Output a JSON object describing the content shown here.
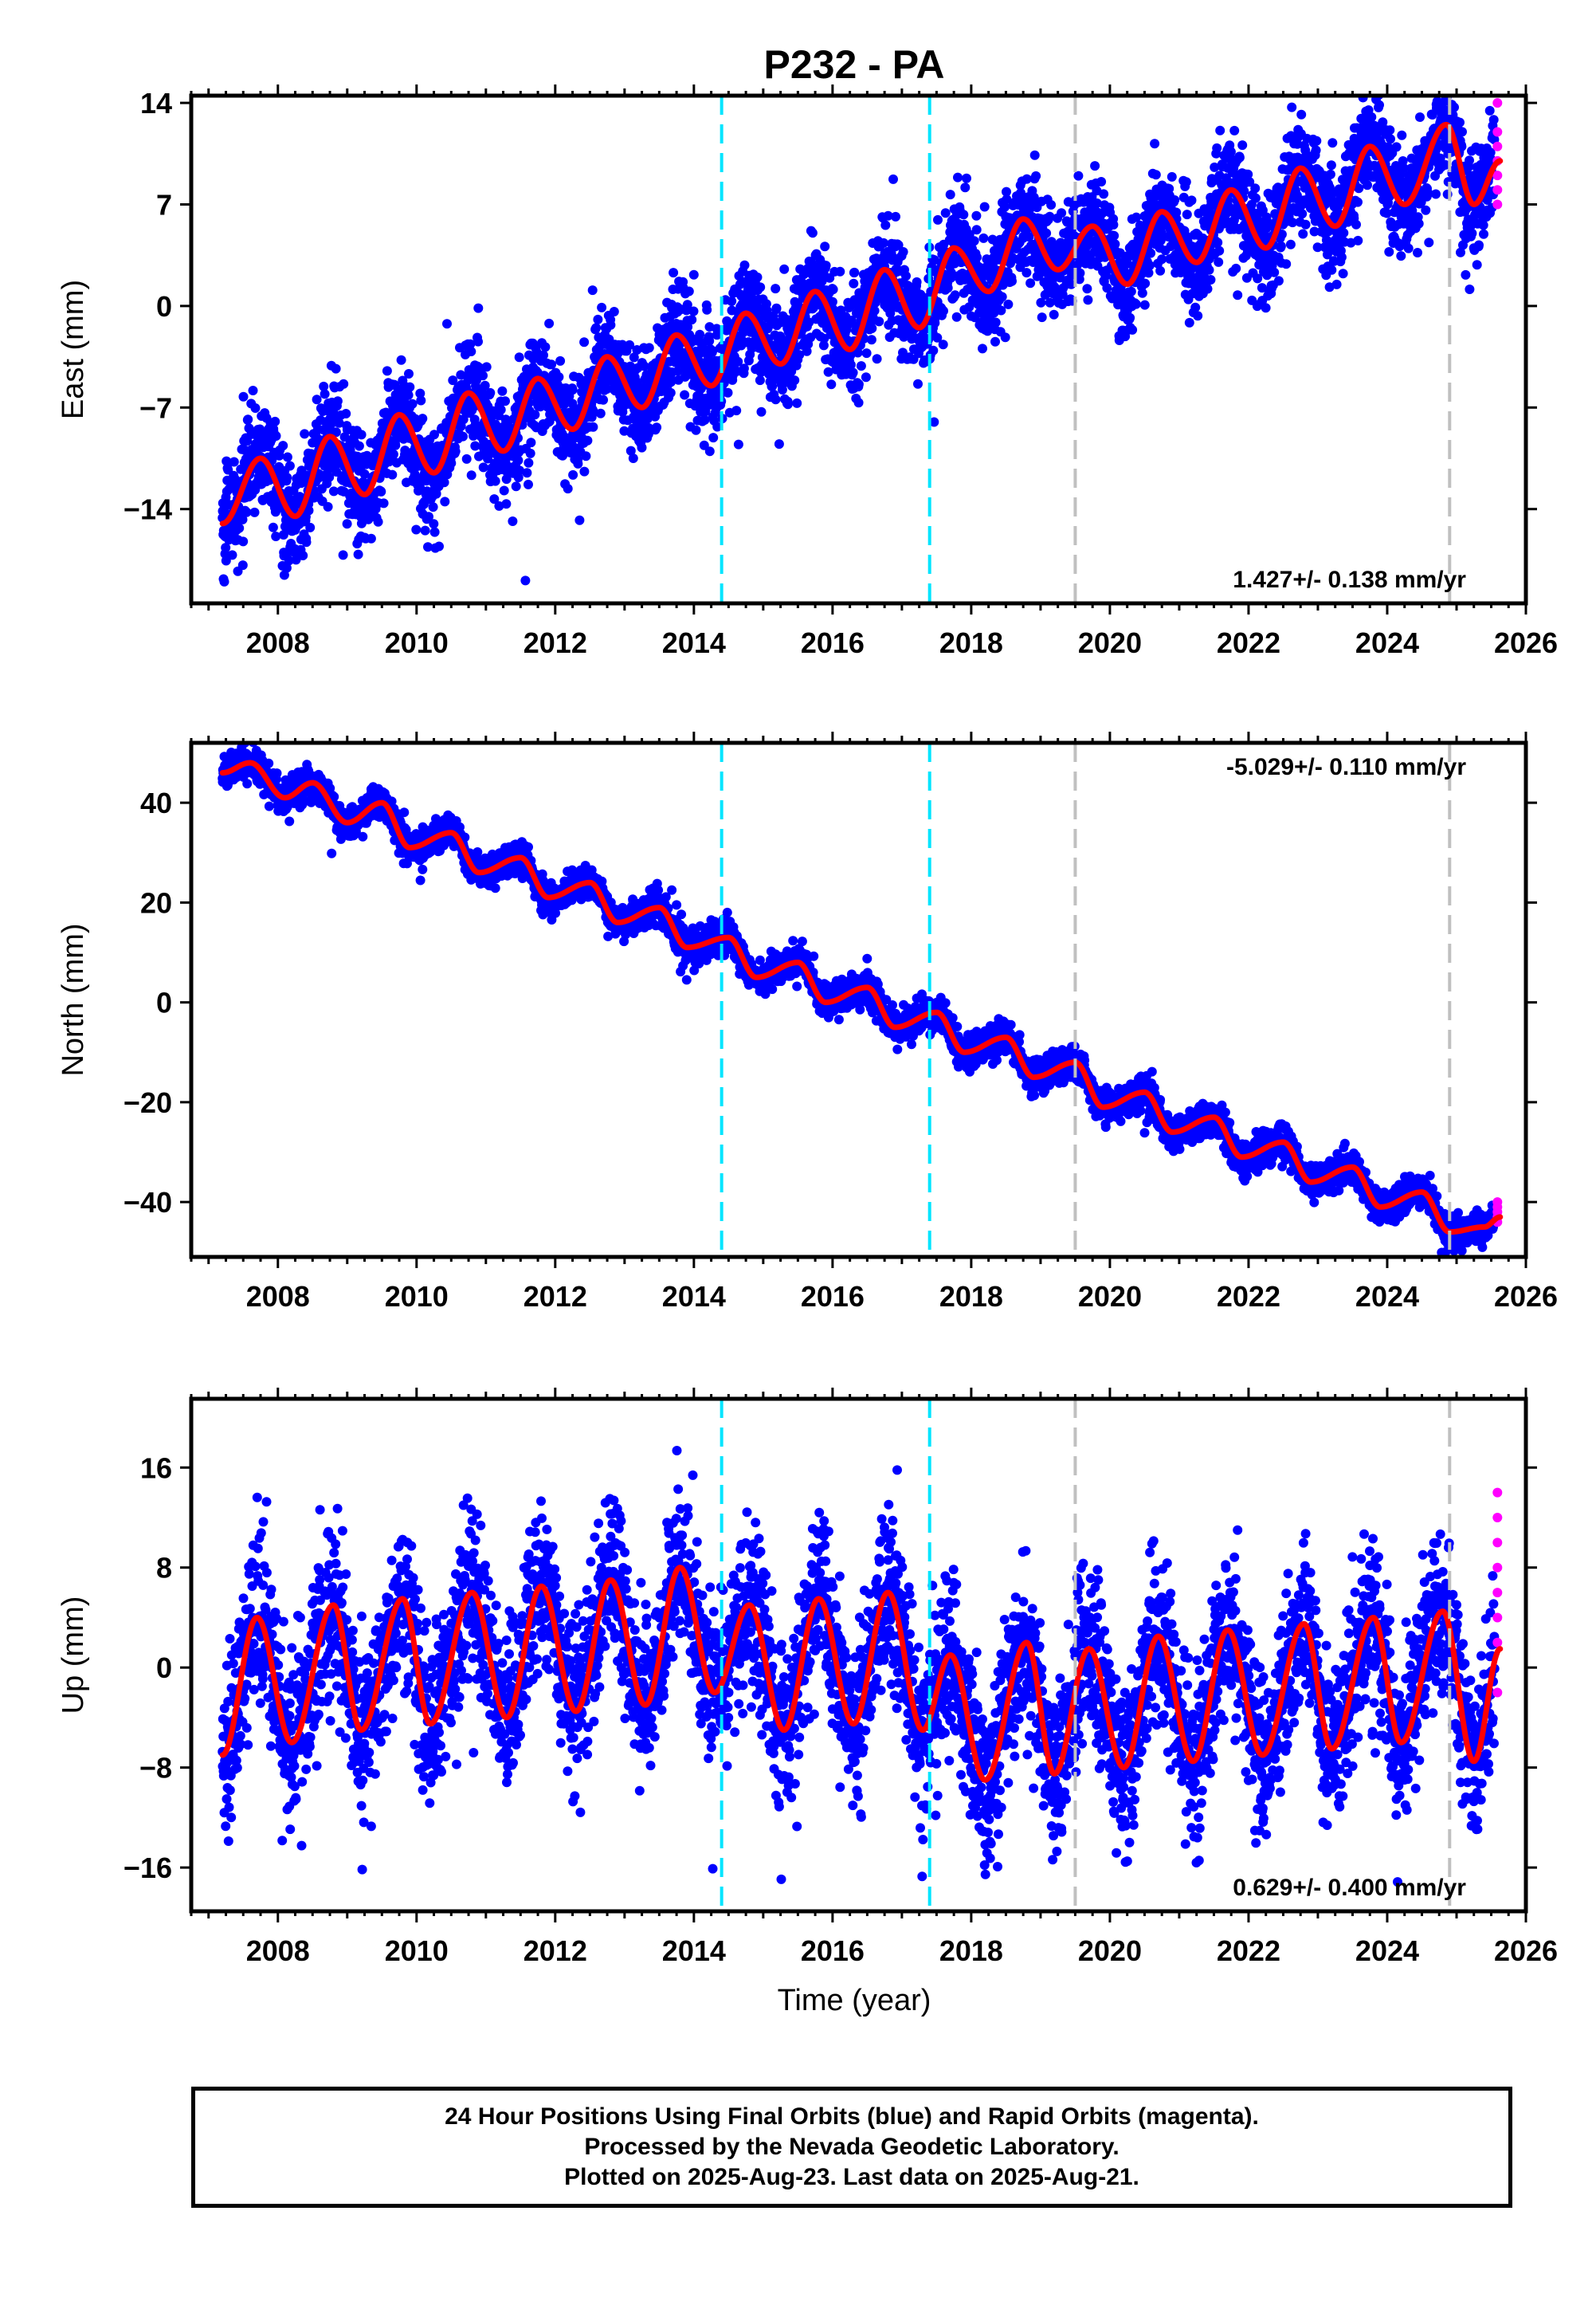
{
  "title": "P232 - PA",
  "xlabel": "Time (year)",
  "footer": {
    "line1": "24 Hour Positions Using Final Orbits (blue) and Rapid Orbits (magenta).",
    "line2": "Processed by the Nevada Geodetic Laboratory.",
    "line3": "Plotted on 2025-Aug-23. Last data on 2025-Aug-21."
  },
  "colors": {
    "final_orbits": "#0000ff",
    "rapid_orbits": "#ff00ff",
    "model": "#ff0000",
    "antenna_change": "#00e5ff",
    "equipment_change": "#c0c0c0"
  },
  "chart_data": [
    {
      "type": "scatter",
      "name": "east",
      "ylabel": "East (mm)",
      "rate_text": "1.427+/- 0.138 mm/yr",
      "xlim": [
        2006.75,
        2026.0
      ],
      "ylim": [
        -20.5,
        14.5
      ],
      "xticks": [
        2008,
        2010,
        2012,
        2014,
        2016,
        2018,
        2020,
        2022,
        2024,
        2026
      ],
      "yticks": [
        -14,
        -7,
        0,
        7,
        14
      ],
      "ytick_labels": [
        "−14",
        "−7",
        "0",
        "7",
        "14"
      ],
      "data_start": 2007.2,
      "data_end": 2025.63,
      "rapid_start": 2025.55,
      "vlines_cyan": [
        2014.4,
        2017.4
      ],
      "vlines_gray": [
        2019.5,
        2024.9
      ],
      "model_points": [
        [
          2007.2,
          -15
        ],
        [
          2007.75,
          -10.5
        ],
        [
          2008.25,
          -14.5
        ],
        [
          2008.75,
          -9
        ],
        [
          2009.25,
          -13
        ],
        [
          2009.75,
          -7.5
        ],
        [
          2010.25,
          -11.5
        ],
        [
          2010.75,
          -6
        ],
        [
          2011.25,
          -10
        ],
        [
          2011.75,
          -5
        ],
        [
          2012.25,
          -8.5
        ],
        [
          2012.75,
          -3.5
        ],
        [
          2013.25,
          -7
        ],
        [
          2013.75,
          -2
        ],
        [
          2014.25,
          -5.5
        ],
        [
          2014.75,
          -0.5
        ],
        [
          2015.25,
          -4
        ],
        [
          2015.75,
          1
        ],
        [
          2016.25,
          -3
        ],
        [
          2016.75,
          2.5
        ],
        [
          2017.25,
          -1.5
        ],
        [
          2017.75,
          4
        ],
        [
          2018.25,
          1
        ],
        [
          2018.75,
          6
        ],
        [
          2019.25,
          2.5
        ],
        [
          2019.75,
          5.5
        ],
        [
          2020.25,
          1.5
        ],
        [
          2020.75,
          6.5
        ],
        [
          2021.25,
          3
        ],
        [
          2021.75,
          8
        ],
        [
          2022.25,
          4
        ],
        [
          2022.75,
          9.5
        ],
        [
          2023.25,
          5.5
        ],
        [
          2023.75,
          11
        ],
        [
          2024.25,
          7
        ],
        [
          2024.85,
          12.5
        ],
        [
          2025.25,
          7
        ],
        [
          2025.63,
          10
        ]
      ],
      "scatter_spread": 1.8,
      "rapid_values": [
        7,
        8,
        9,
        10,
        11,
        12,
        14
      ]
    },
    {
      "type": "scatter",
      "name": "north",
      "ylabel": "North (mm)",
      "rate_text": "-5.029+/- 0.110 mm/yr",
      "xlim": [
        2006.75,
        2026.0
      ],
      "ylim": [
        -51,
        52
      ],
      "xticks": [
        2008,
        2010,
        2012,
        2014,
        2016,
        2018,
        2020,
        2022,
        2024,
        2026
      ],
      "yticks": [
        -40,
        -20,
        0,
        20,
        40
      ],
      "ytick_labels": [
        "−40",
        "−20",
        "0",
        "20",
        "40"
      ],
      "data_start": 2007.2,
      "data_end": 2025.63,
      "rapid_start": 2025.55,
      "vlines_cyan": [
        2014.4,
        2017.4
      ],
      "vlines_gray": [
        2019.5,
        2024.9
      ],
      "model_points": [
        [
          2007.2,
          46
        ],
        [
          2007.6,
          48
        ],
        [
          2008.1,
          41
        ],
        [
          2008.5,
          44
        ],
        [
          2009.0,
          36
        ],
        [
          2009.5,
          40
        ],
        [
          2009.9,
          31
        ],
        [
          2010.5,
          34
        ],
        [
          2010.9,
          26
        ],
        [
          2011.5,
          29
        ],
        [
          2011.9,
          21
        ],
        [
          2012.5,
          24
        ],
        [
          2012.9,
          16
        ],
        [
          2013.5,
          19
        ],
        [
          2013.9,
          11
        ],
        [
          2014.5,
          13
        ],
        [
          2014.9,
          5
        ],
        [
          2015.5,
          8
        ],
        [
          2015.9,
          0
        ],
        [
          2016.5,
          3
        ],
        [
          2016.9,
          -5
        ],
        [
          2017.5,
          -2
        ],
        [
          2017.9,
          -10
        ],
        [
          2018.5,
          -7
        ],
        [
          2018.9,
          -15
        ],
        [
          2019.5,
          -12
        ],
        [
          2019.9,
          -21
        ],
        [
          2020.5,
          -18
        ],
        [
          2020.9,
          -26
        ],
        [
          2021.5,
          -23
        ],
        [
          2021.9,
          -31
        ],
        [
          2022.5,
          -28
        ],
        [
          2022.9,
          -36
        ],
        [
          2023.5,
          -33
        ],
        [
          2023.9,
          -41
        ],
        [
          2024.5,
          -38
        ],
        [
          2024.9,
          -46
        ],
        [
          2025.4,
          -45
        ],
        [
          2025.63,
          -43
        ]
      ],
      "scatter_spread": 1.6,
      "rapid_values": [
        -44,
        -43,
        -42,
        -41,
        -40
      ]
    },
    {
      "type": "scatter",
      "name": "up",
      "ylabel": "Up (mm)",
      "rate_text": "0.629+/- 0.400 mm/yr",
      "xlim": [
        2006.75,
        2026.0
      ],
      "ylim": [
        -19.5,
        21.5
      ],
      "xticks": [
        2008,
        2010,
        2012,
        2014,
        2016,
        2018,
        2020,
        2022,
        2024,
        2026
      ],
      "yticks": [
        -16,
        -8,
        0,
        8,
        16
      ],
      "ytick_labels": [
        "−16",
        "−8",
        "0",
        "8",
        "16"
      ],
      "data_start": 2007.2,
      "data_end": 2025.63,
      "rapid_start": 2025.55,
      "vlines_cyan": [
        2014.4,
        2017.4
      ],
      "vlines_gray": [
        2019.5,
        2024.9
      ],
      "model_points": [
        [
          2007.2,
          -7
        ],
        [
          2007.7,
          4
        ],
        [
          2008.2,
          -6
        ],
        [
          2008.8,
          5
        ],
        [
          2009.2,
          -5
        ],
        [
          2009.8,
          5.5
        ],
        [
          2010.2,
          -4.5
        ],
        [
          2010.8,
          6
        ],
        [
          2011.3,
          -4
        ],
        [
          2011.8,
          6.5
        ],
        [
          2012.3,
          -3.5
        ],
        [
          2012.8,
          7
        ],
        [
          2013.3,
          -3
        ],
        [
          2013.8,
          8
        ],
        [
          2014.3,
          -2
        ],
        [
          2014.8,
          5
        ],
        [
          2015.3,
          -5
        ],
        [
          2015.8,
          5.5
        ],
        [
          2016.3,
          -4.5
        ],
        [
          2016.8,
          6
        ],
        [
          2017.3,
          -5
        ],
        [
          2017.7,
          1
        ],
        [
          2018.2,
          -9
        ],
        [
          2018.8,
          2
        ],
        [
          2019.2,
          -8.5
        ],
        [
          2019.7,
          1.5
        ],
        [
          2020.2,
          -8
        ],
        [
          2020.7,
          2.5
        ],
        [
          2021.2,
          -7.5
        ],
        [
          2021.7,
          3
        ],
        [
          2022.2,
          -7
        ],
        [
          2022.8,
          3.5
        ],
        [
          2023.2,
          -6.5
        ],
        [
          2023.8,
          4
        ],
        [
          2024.2,
          -6
        ],
        [
          2024.8,
          4.5
        ],
        [
          2025.25,
          -7.5
        ],
        [
          2025.63,
          1.5
        ]
      ],
      "scatter_spread": 3.2,
      "rapid_values": [
        -2,
        2,
        4,
        6,
        8,
        10,
        12,
        14
      ]
    }
  ]
}
